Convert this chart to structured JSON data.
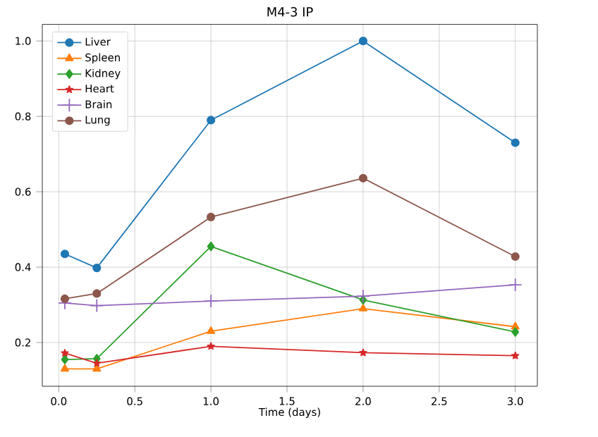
{
  "chart_data": {
    "type": "line",
    "title": "M4-3 IP",
    "xlabel": "Time (days)",
    "x": [
      0.04,
      0.25,
      1,
      2,
      3
    ],
    "series": [
      {
        "name": "Liver",
        "color": "#1f77b4",
        "marker": "circle",
        "values": [
          0.435,
          0.398,
          0.79,
          1.0,
          0.73
        ]
      },
      {
        "name": "Spleen",
        "color": "#ff7f0e",
        "marker": "triangle",
        "values": [
          0.13,
          0.13,
          0.23,
          0.29,
          0.242
        ]
      },
      {
        "name": "Kidney",
        "color": "#2ca02c",
        "marker": "diamond",
        "values": [
          0.155,
          0.157,
          0.455,
          0.313,
          0.228
        ]
      },
      {
        "name": "Heart",
        "color": "#d62728",
        "marker": "star",
        "values": [
          0.172,
          0.145,
          0.19,
          0.173,
          0.165
        ]
      },
      {
        "name": "Brain",
        "color": "#9467bd",
        "marker": "cross",
        "values": [
          0.305,
          0.298,
          0.31,
          0.323,
          0.353
        ]
      },
      {
        "name": "Lung",
        "color": "#8c564b",
        "marker": "circle",
        "values": [
          0.316,
          0.33,
          0.533,
          0.636,
          0.428
        ]
      }
    ],
    "xlim": [
      -0.108,
      3.145
    ],
    "ylim": [
      0.084,
      1.044
    ],
    "xticks": [
      {
        "value": 0,
        "label": "0.0"
      },
      0.5,
      {
        "value": 1,
        "label": "1.0"
      },
      1.5,
      {
        "value": 2,
        "label": "2.0"
      },
      2.5,
      {
        "value": 3,
        "label": "3.0"
      }
    ],
    "yticks": [
      0.2,
      0.4,
      0.6,
      0.8,
      {
        "value": 1,
        "label": "1.0"
      }
    ],
    "grid": true,
    "legend": "top left",
    "line_style": "solid"
  }
}
